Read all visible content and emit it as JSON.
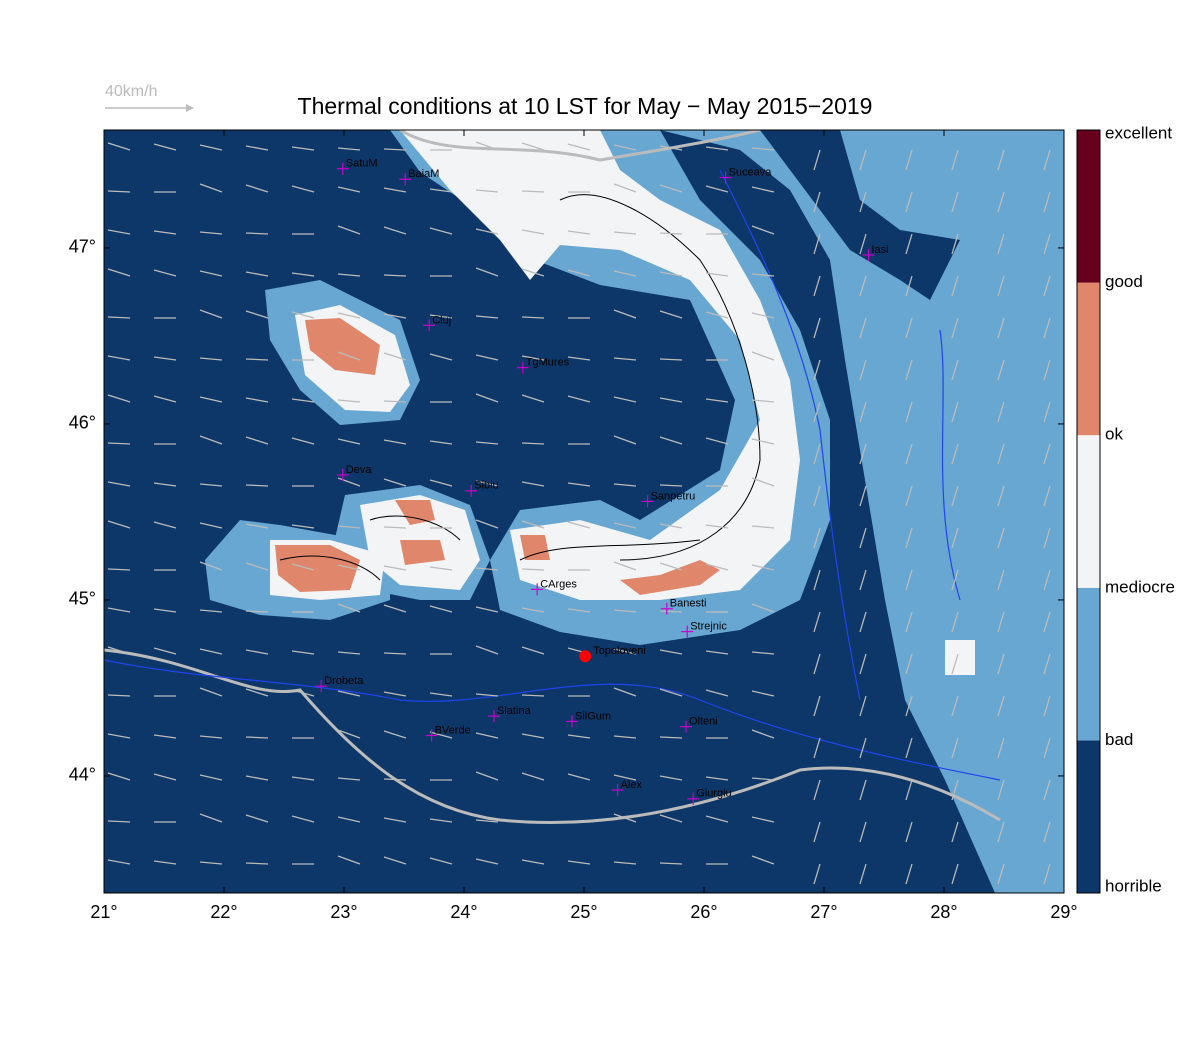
{
  "chart_data": {
    "type": "map",
    "title": "Thermal conditions at 10 LST for May − May  2015−2019",
    "wind_scale_label": "40km/h",
    "xlim": [
      21,
      29
    ],
    "ylim": [
      43.335,
      47.67
    ],
    "xticks": [
      {
        "value": 21,
        "label": "21°"
      },
      {
        "value": 22,
        "label": "22°"
      },
      {
        "value": 23,
        "label": "23°"
      },
      {
        "value": 24,
        "label": "24°"
      },
      {
        "value": 25,
        "label": "25°"
      },
      {
        "value": 26,
        "label": "26°"
      },
      {
        "value": 27,
        "label": "27°"
      },
      {
        "value": 28,
        "label": "28°"
      },
      {
        "value": 29,
        "label": "29°"
      }
    ],
    "yticks": [
      {
        "value": 44,
        "label": "44°"
      },
      {
        "value": 45,
        "label": "45°"
      },
      {
        "value": 46,
        "label": "46°"
      },
      {
        "value": 47,
        "label": "47°"
      }
    ],
    "colorbar": {
      "labels": [
        "horrible",
        "bad",
        "mediocre",
        "ok",
        "good",
        "excellent"
      ],
      "colors": [
        "#0c3768",
        "#68a7d2",
        "#f3f4f6",
        "#e0866a",
        "#67001f"
      ]
    },
    "cities": {
      "color": "#cc00cc",
      "names": [
        "SatuM",
        "BaiaM",
        "Suceava",
        "Iasi",
        "Cluj",
        "TgMures",
        "Deva",
        "Sibiu",
        "Sanpetru",
        "CArges",
        "Banesti",
        "Strejnic",
        "Drobeta",
        "Slatina",
        "BVerde",
        "SilGum",
        "Olteni",
        "Alex",
        "Giurgiu"
      ],
      "lon": [
        22.99,
        23.51,
        26.18,
        27.37,
        23.71,
        24.49,
        22.99,
        24.06,
        25.53,
        24.61,
        25.69,
        25.86,
        22.81,
        24.25,
        23.73,
        24.9,
        25.85,
        25.28,
        25.91
      ],
      "lat": [
        47.45,
        47.39,
        47.4,
        46.96,
        46.56,
        46.32,
        45.71,
        45.62,
        45.56,
        45.06,
        44.95,
        44.82,
        44.51,
        44.34,
        44.23,
        44.31,
        44.28,
        43.92,
        43.87
      ]
    },
    "site": {
      "name": "Topoloveni",
      "lon": 25.01,
      "lat": 44.68,
      "color": "#ff0000"
    }
  }
}
